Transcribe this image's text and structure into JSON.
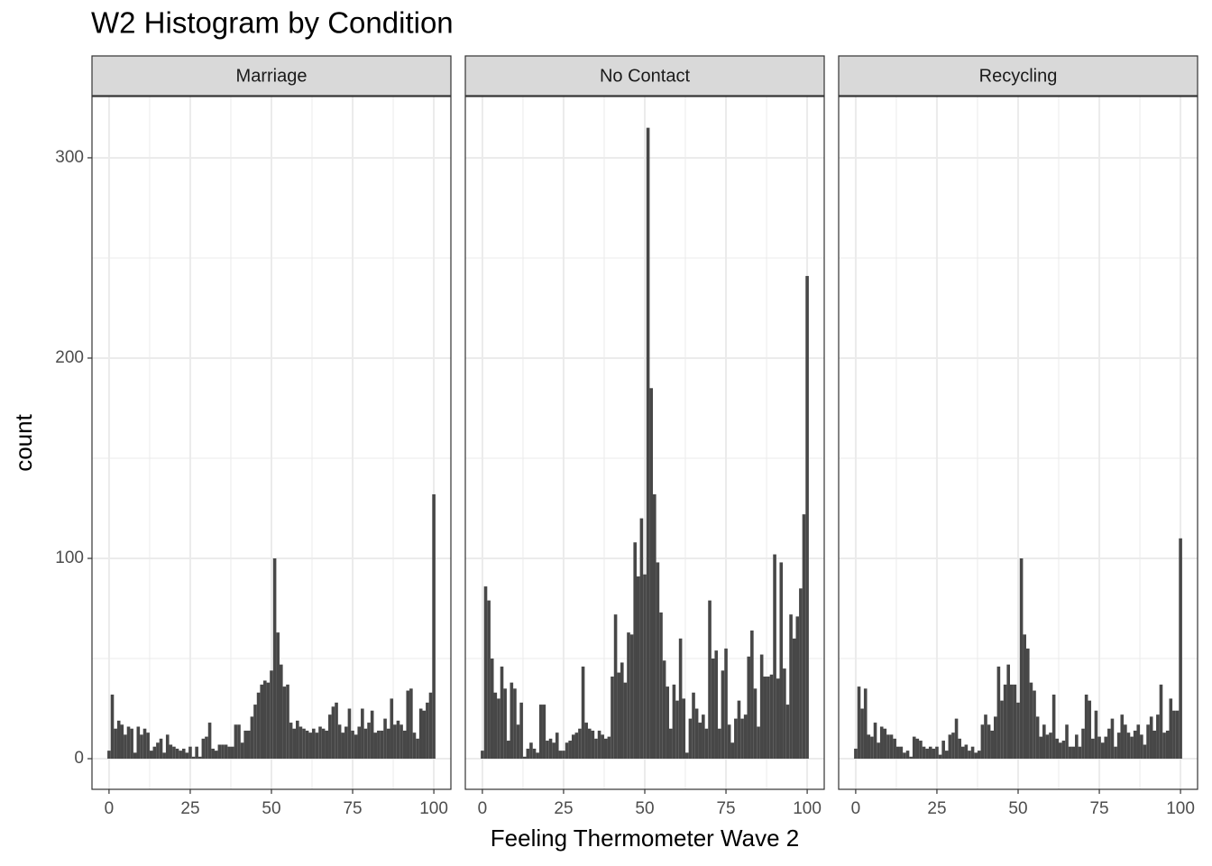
{
  "chart_data": {
    "type": "histogram",
    "title": "W2 Histogram by Condition",
    "x_label": "Feeling Thermometer Wave 2",
    "y_label": "count",
    "color": "#474747",
    "grid": true,
    "xlim": [
      -5.25,
      105.25
    ],
    "xticks": [
      0,
      25,
      50,
      75,
      100
    ],
    "x_minor_grid": [
      12.5,
      37.5,
      62.5,
      87.5
    ],
    "ylim": [
      -15.3,
      330.6
    ],
    "yticks": [
      0,
      100,
      200,
      300
    ],
    "y_minor_grid": [
      50,
      150,
      250
    ],
    "bins": [
      -0.5,
      0.5,
      1.5,
      2.5,
      3.5,
      4.5,
      5.5,
      6.5,
      7.5,
      8.5,
      9.5,
      10.5,
      11.5,
      12.5,
      13.5,
      14.5,
      15.5,
      16.5,
      17.5,
      18.5,
      19.5,
      20.5,
      21.5,
      22.5,
      23.5,
      24.5,
      25.5,
      26.5,
      27.5,
      28.5,
      29.5,
      30.5,
      31.5,
      32.5,
      33.5,
      34.5,
      35.5,
      36.5,
      37.5,
      38.5,
      39.5,
      40.5,
      41.5,
      42.5,
      43.5,
      44.5,
      45.5,
      46.5,
      47.5,
      48.5,
      49.5,
      50.5,
      51.5,
      52.5,
      53.5,
      54.5,
      55.5,
      56.5,
      57.5,
      58.5,
      59.5,
      60.5,
      61.5,
      62.5,
      63.5,
      64.5,
      65.5,
      66.5,
      67.5,
      68.5,
      69.5,
      70.5,
      71.5,
      72.5,
      73.5,
      74.5,
      75.5,
      76.5,
      77.5,
      78.5,
      79.5,
      80.5,
      81.5,
      82.5,
      83.5,
      84.5,
      85.5,
      86.5,
      87.5,
      88.5,
      89.5,
      90.5,
      91.5,
      92.5,
      93.5,
      94.5,
      95.5,
      96.5,
      97.5,
      98.5,
      99.5,
      100.5
    ],
    "panels": [
      {
        "name": "Marriage",
        "values": [
          4,
          32,
          15,
          19,
          17,
          12,
          16,
          15,
          3,
          16,
          12,
          15,
          13,
          4,
          6,
          8,
          10,
          3,
          12,
          7,
          6,
          5,
          4,
          5,
          3,
          6,
          1,
          6,
          1,
          10,
          11,
          18,
          5,
          4,
          7,
          7,
          7,
          6,
          6,
          17,
          17,
          8,
          14,
          14,
          21,
          27,
          33,
          37,
          39,
          38,
          44,
          100,
          63,
          47,
          36,
          37,
          18,
          15,
          19,
          16,
          15,
          14,
          13,
          15,
          13,
          16,
          15,
          14,
          22,
          26,
          28,
          17,
          13,
          16,
          25,
          14,
          12,
          16,
          25,
          15,
          18,
          24,
          13,
          14,
          14,
          20,
          15,
          30,
          17,
          19,
          17,
          14,
          34,
          35,
          13,
          10,
          25,
          24,
          28,
          33,
          132
        ]
      },
      {
        "name": "No Contact",
        "values": [
          4,
          86,
          79,
          50,
          33,
          30,
          46,
          35,
          9,
          38,
          35,
          17,
          28,
          1,
          5,
          8,
          5,
          3,
          27,
          27,
          9,
          10,
          8,
          13,
          4,
          4,
          8,
          9,
          12,
          13,
          15,
          46,
          18,
          15,
          14,
          10,
          14,
          12,
          10,
          11,
          41,
          72,
          43,
          48,
          38,
          63,
          62,
          108,
          91,
          120,
          92,
          315,
          185,
          132,
          98,
          73,
          49,
          36,
          15,
          37,
          29,
          60,
          30,
          3,
          20,
          33,
          25,
          18,
          22,
          15,
          79,
          50,
          54,
          15,
          44,
          55,
          17,
          8,
          20,
          29,
          20,
          22,
          51,
          64,
          35,
          16,
          52,
          41,
          41,
          42,
          102,
          40,
          98,
          45,
          27,
          72,
          60,
          71,
          85,
          122,
          241
        ]
      },
      {
        "name": "Recycling",
        "values": [
          5,
          36,
          25,
          35,
          12,
          11,
          18,
          8,
          16,
          15,
          12,
          12,
          10,
          6,
          6,
          3,
          4,
          1,
          11,
          10,
          9,
          6,
          5,
          6,
          5,
          6,
          2,
          9,
          4,
          12,
          13,
          20,
          10,
          6,
          7,
          4,
          6,
          3,
          4,
          17,
          22,
          17,
          14,
          21,
          46,
          29,
          37,
          47,
          37,
          37,
          28,
          100,
          62,
          55,
          38,
          34,
          21,
          11,
          17,
          12,
          13,
          32,
          10,
          8,
          9,
          17,
          6,
          6,
          12,
          6,
          15,
          32,
          29,
          10,
          24,
          11,
          8,
          11,
          15,
          20,
          6,
          13,
          22,
          17,
          13,
          11,
          14,
          17,
          12,
          7,
          17,
          21,
          14,
          22,
          37,
          13,
          14,
          30,
          24,
          24,
          110
        ]
      }
    ]
  }
}
